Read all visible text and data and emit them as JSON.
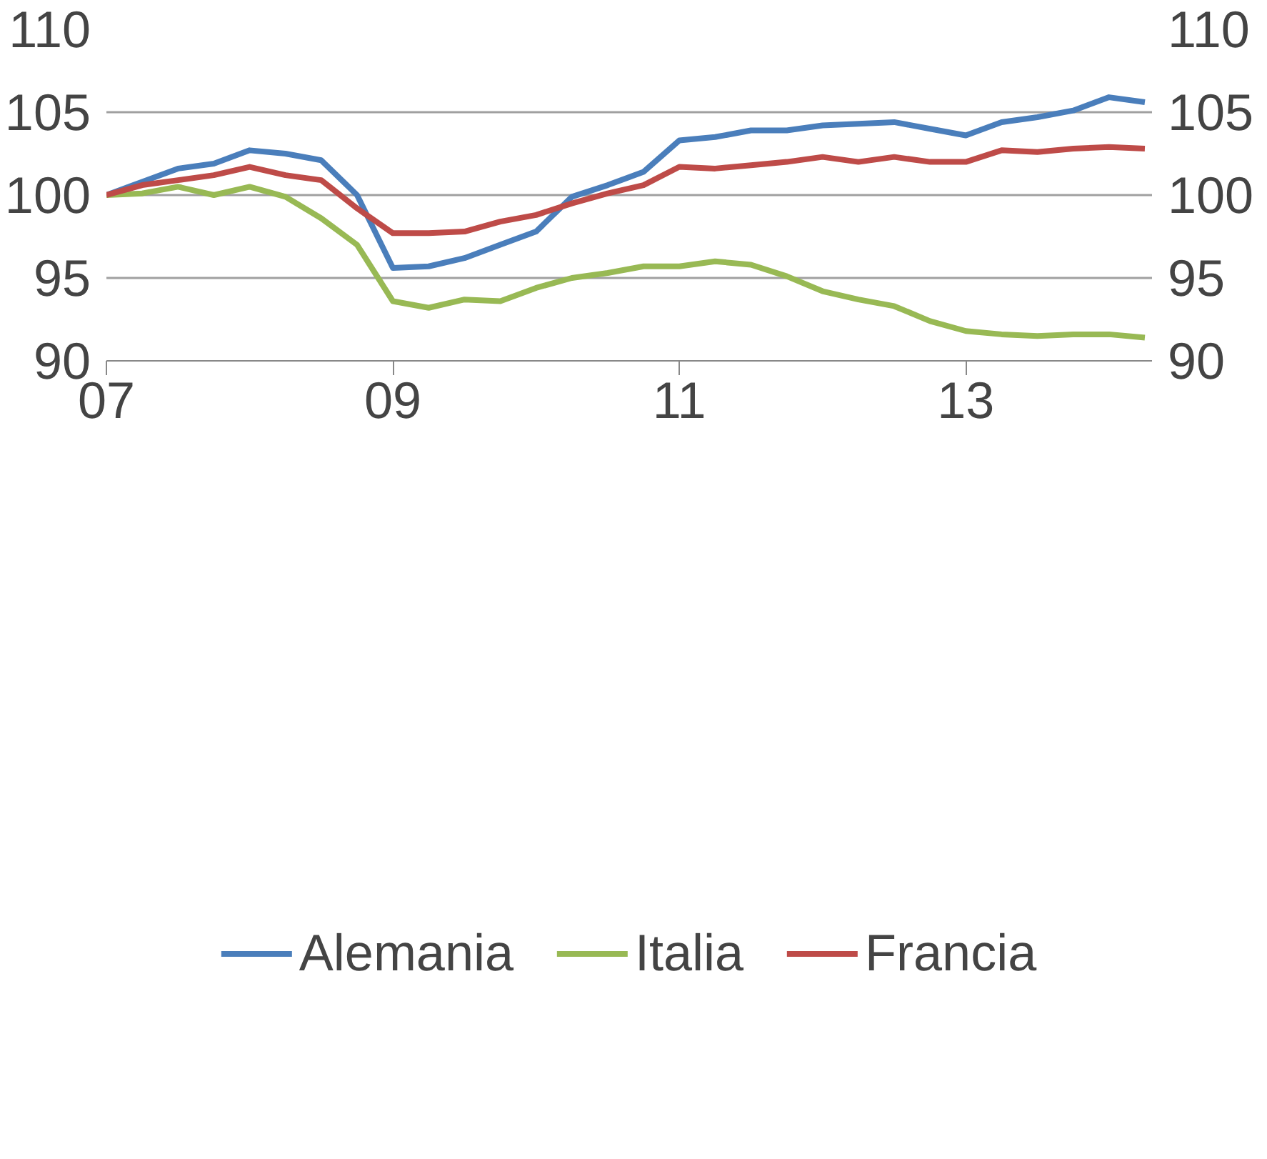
{
  "chart_data": {
    "type": "line",
    "x": [
      2007,
      2007.25,
      2007.5,
      2007.75,
      2008,
      2008.25,
      2008.5,
      2008.75,
      2009,
      2009.25,
      2009.5,
      2009.75,
      2010,
      2010.25,
      2010.5,
      2010.75,
      2011,
      2011.25,
      2011.5,
      2011.75,
      2012,
      2012.25,
      2012.5,
      2012.75,
      2013,
      2013.25,
      2013.5,
      2013.75,
      2014,
      2014.25
    ],
    "series": [
      {
        "name": "Alemania",
        "color": "#4a7ebb",
        "values": [
          100,
          100.8,
          101.6,
          101.9,
          102.7,
          102.5,
          102.1,
          100.0,
          95.6,
          95.7,
          96.2,
          97.0,
          97.8,
          99.9,
          100.6,
          101.4,
          103.3,
          103.5,
          103.9,
          103.9,
          104.2,
          104.3,
          104.4,
          104.0,
          103.6,
          104.4,
          104.7,
          105.1,
          105.9,
          105.6
        ]
      },
      {
        "name": "Italia",
        "color": "#98b954",
        "values": [
          100,
          100.1,
          100.5,
          100.0,
          100.5,
          99.9,
          98.6,
          97.0,
          93.6,
          93.2,
          93.7,
          93.6,
          94.4,
          95.0,
          95.3,
          95.7,
          95.7,
          96.0,
          95.8,
          95.1,
          94.2,
          93.7,
          93.3,
          92.4,
          91.8,
          91.6,
          91.5,
          91.6,
          91.6,
          91.4
        ]
      },
      {
        "name": "Francia",
        "color": "#be4b48",
        "values": [
          100,
          100.6,
          100.9,
          101.2,
          101.7,
          101.2,
          100.9,
          99.2,
          97.7,
          97.7,
          97.8,
          98.4,
          98.8,
          99.5,
          100.1,
          100.6,
          101.7,
          101.6,
          101.8,
          102.0,
          102.3,
          102.0,
          102.3,
          102.0,
          102.0,
          102.7,
          102.6,
          102.8,
          102.9,
          102.8
        ]
      }
    ],
    "xlim": [
      2007,
      2014.3
    ],
    "xticks": [
      {
        "value": 2007,
        "label": "07"
      },
      {
        "value": 2009,
        "label": "09"
      },
      {
        "value": 2011,
        "label": "11"
      },
      {
        "value": 2013,
        "label": "13"
      }
    ],
    "ylim": [
      90,
      110
    ],
    "yticks": [
      90,
      95,
      100,
      105,
      110
    ],
    "y2lim": [
      90,
      110
    ],
    "y2ticks": [
      90,
      95,
      100,
      105,
      110
    ],
    "grid": "y",
    "legend": "bottom",
    "line_style": "solid",
    "marker": "none"
  }
}
